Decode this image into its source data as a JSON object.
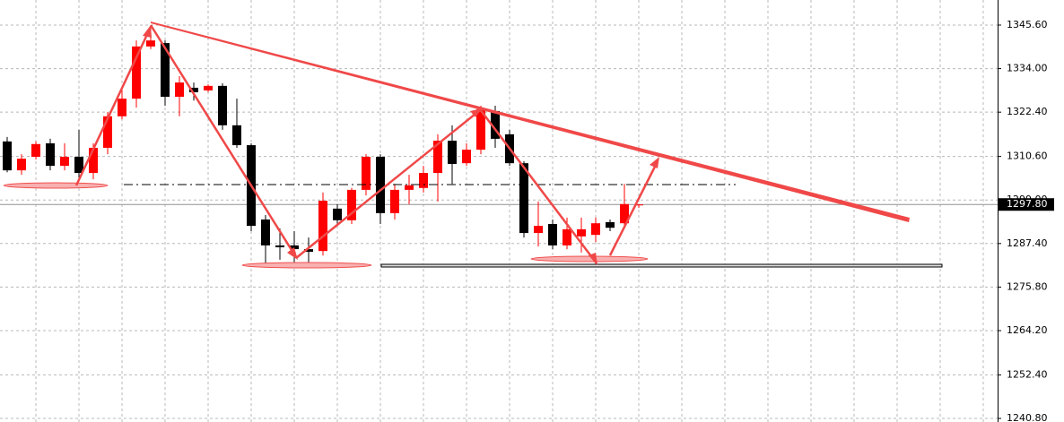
{
  "chart_data": {
    "type": "candlestick",
    "open": [
      1314.6,
      1306.9,
      1310.5,
      1314.1,
      1308.1,
      1310.5,
      1306.2,
      1312.9,
      1321.3,
      1326.0,
      1339.9,
      1340.8,
      1326.5,
      1328.9,
      1328.2,
      1329.4,
      1318.9,
      1313.6,
      1293.8,
      1286.9,
      1286.9,
      1285.9,
      1285.4,
      1296.7,
      1293.6,
      1301.7,
      1310.5,
      1295.5,
      1301.7,
      1302.2,
      1306.2,
      1314.8,
      1308.8,
      1312.4,
      1322.7,
      1316.5,
      1308.8,
      1290.2,
      1292.6,
      1286.9,
      1289.3,
      1289.7,
      1293.1,
      1292.8,
      1297.6
    ],
    "high": [
      1315.8,
      1311.2,
      1314.6,
      1315.3,
      1314.1,
      1317.7,
      1314.1,
      1322.4,
      1328.4,
      1341.5,
      1345.1,
      1341.5,
      1332.0,
      1330.3,
      1329.8,
      1330.1,
      1326.0,
      1314.1,
      1295.0,
      1291.4,
      1290.7,
      1289.0,
      1301.0,
      1297.9,
      1302.2,
      1311.2,
      1311.2,
      1303.3,
      1305.7,
      1308.1,
      1316.5,
      1318.9,
      1314.1,
      1324.1,
      1324.1,
      1317.7,
      1309.3,
      1298.6,
      1293.8,
      1294.3,
      1294.3,
      1294.3,
      1293.8,
      1303.3,
      1297.9
    ],
    "low": [
      1306.4,
      1305.7,
      1309.8,
      1306.9,
      1306.9,
      1305.0,
      1304.5,
      1311.2,
      1320.5,
      1323.6,
      1339.2,
      1324.1,
      1321.3,
      1325.5,
      1327.7,
      1317.7,
      1312.9,
      1290.7,
      1281.9,
      1283.1,
      1281.9,
      1281.2,
      1284.2,
      1292.6,
      1292.6,
      1300.2,
      1292.6,
      1293.8,
      1297.9,
      1301.0,
      1298.6,
      1303.3,
      1308.1,
      1311.2,
      1312.9,
      1308.1,
      1289.0,
      1286.6,
      1285.9,
      1285.9,
      1285.0,
      1287.8,
      1290.7,
      1292.1,
      1296.9
    ],
    "close": [
      1306.9,
      1310.0,
      1313.9,
      1308.1,
      1310.5,
      1306.2,
      1312.9,
      1321.3,
      1326.0,
      1339.9,
      1341.5,
      1326.5,
      1330.3,
      1327.7,
      1329.4,
      1318.9,
      1313.6,
      1292.1,
      1286.9,
      1286.4,
      1285.9,
      1285.2,
      1298.8,
      1293.6,
      1301.7,
      1310.5,
      1295.5,
      1301.7,
      1302.9,
      1306.2,
      1314.8,
      1308.6,
      1312.4,
      1323.2,
      1315.3,
      1308.8,
      1290.2,
      1292.1,
      1286.9,
      1291.2,
      1291.2,
      1292.8,
      1291.6,
      1297.9,
      1297.8
    ],
    "up_color": "#ff0000",
    "down_color": "#000000",
    "ylim": [
      1239.85,
      1352.28
    ],
    "yticks": [
      {
        "value": 1240.8,
        "label": "1240.80"
      },
      {
        "value": 1252.4,
        "label": "1252.40"
      },
      {
        "value": 1264.2,
        "label": "1264.20"
      },
      {
        "value": 1275.8,
        "label": "1275.80"
      },
      {
        "value": 1287.4,
        "label": "1287.40"
      },
      {
        "value": 1299.0,
        "label": "1299.00"
      },
      {
        "value": 1310.6,
        "label": "1310.60"
      },
      {
        "value": 1322.4,
        "label": "1322.40"
      },
      {
        "value": 1334.0,
        "label": "1334.00"
      },
      {
        "value": 1345.6,
        "label": "1345.60"
      }
    ],
    "last_price": {
      "value": 1297.8,
      "label": "1297.80"
    },
    "grid": true
  }
}
